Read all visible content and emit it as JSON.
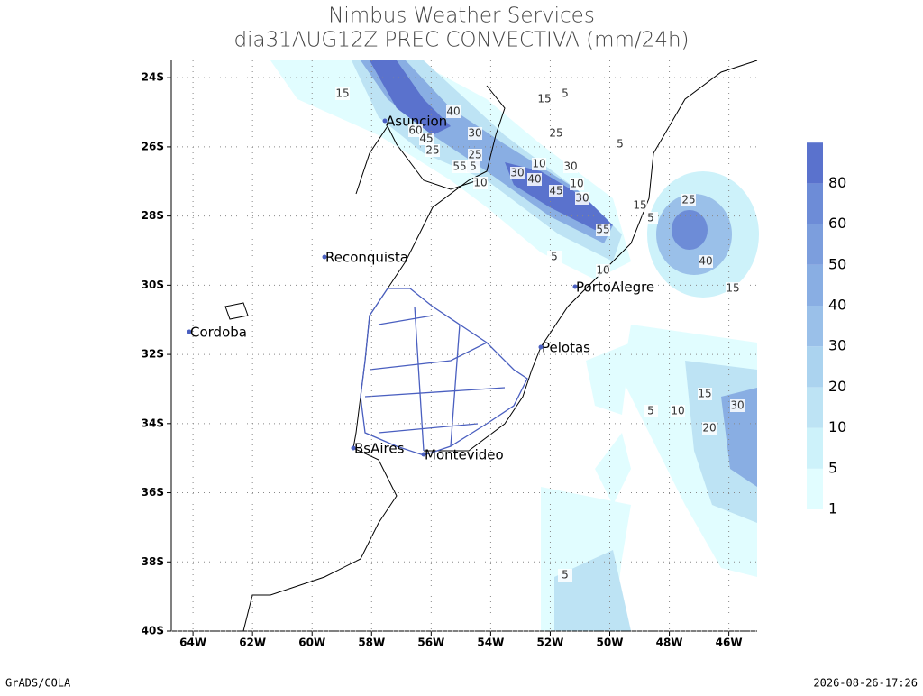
{
  "header": {
    "title": "Nimbus Weather Services",
    "subtitle": "dia31AUG12Z PREC CONVECTIVA (mm/24h)"
  },
  "map": {
    "xlim": [
      -64.73,
      -45.05
    ],
    "ylim": [
      -40,
      -23.5
    ],
    "xticks": [
      {
        "value": -64,
        "label": "64W"
      },
      {
        "value": -62,
        "label": "62W"
      },
      {
        "value": -60,
        "label": "60W"
      },
      {
        "value": -58,
        "label": "58W"
      },
      {
        "value": -56,
        "label": "56W"
      },
      {
        "value": -54,
        "label": "54W"
      },
      {
        "value": -52,
        "label": "52W"
      },
      {
        "value": -50,
        "label": "50W"
      },
      {
        "value": -48,
        "label": "48W"
      },
      {
        "value": -46,
        "label": "46W"
      }
    ],
    "yticks": [
      {
        "value": -24,
        "label": "24S"
      },
      {
        "value": -26,
        "label": "26S"
      },
      {
        "value": -28,
        "label": "28S"
      },
      {
        "value": -30,
        "label": "30S"
      },
      {
        "value": -32,
        "label": "32S"
      },
      {
        "value": -34,
        "label": "34S"
      },
      {
        "value": -36,
        "label": "36S"
      },
      {
        "value": -38,
        "label": "38S"
      },
      {
        "value": -40,
        "label": "40S"
      }
    ],
    "grid": true,
    "cities": [
      "Asuncion",
      "Reconquista",
      "Cordoba",
      "PortoAlegre",
      "Pelotas",
      "BsAires",
      "Montevideo"
    ],
    "contour_labels": [
      "15",
      "40",
      "60",
      "45",
      "25",
      "30",
      "25",
      "55",
      "5",
      "10",
      "15",
      "5",
      "25",
      "30",
      "10",
      "30",
      "40",
      "45",
      "10",
      "30",
      "55",
      "5",
      "10",
      "5",
      "15",
      "5",
      "25",
      "40",
      "15",
      "15",
      "30",
      "5",
      "10",
      "20",
      "5"
    ]
  },
  "colorbar": {
    "levels": [
      1,
      5,
      10,
      20,
      30,
      40,
      50,
      60,
      80
    ],
    "colors": [
      "#e1fdff",
      "#cdf2fa",
      "#bde3f4",
      "#abd3ef",
      "#9ac0e9",
      "#89aee3",
      "#7c9edd",
      "#6d8cd7",
      "#5a72cd"
    ]
  },
  "footer": {
    "left": "GrADS/COLA",
    "right": "2026-08-26-17:26"
  }
}
